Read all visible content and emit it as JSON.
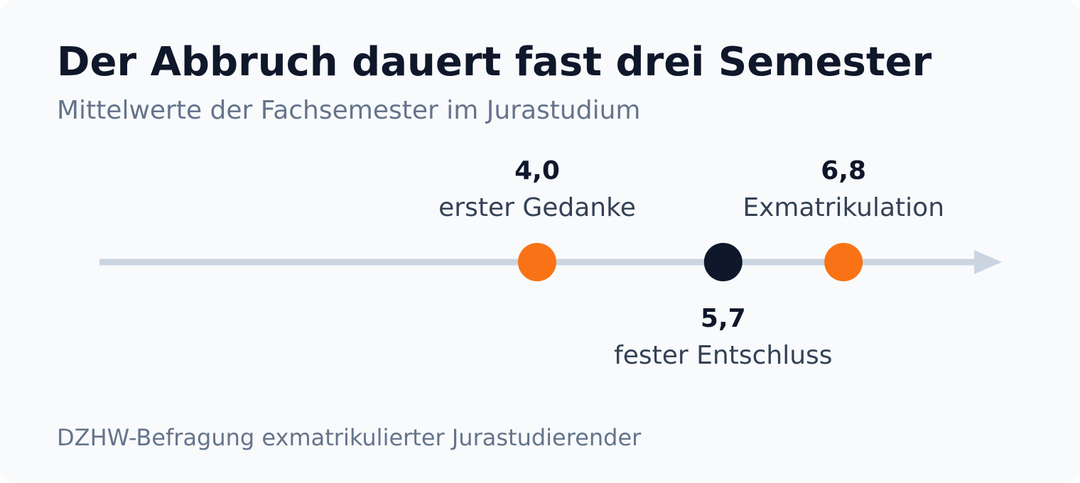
{
  "title": "Der Abbruch dauert fast drei Semester",
  "subtitle": "Mittelwerte der Fachsemester im Jurastudium",
  "source": "DZHW-Befragung exmatrikulierter Jurastudierender",
  "colors": {
    "background": "#f8fafc",
    "axis": "#cbd5e1",
    "accent": "#f97316",
    "highlight": "#0f172a",
    "title": "#0f172a",
    "muted": "#64748b",
    "label": "#334155"
  },
  "chart_data": {
    "type": "scatter",
    "orientation": "horizontal-timeline",
    "x_unit": "Fachsemester",
    "xlim": [
      0,
      8.5
    ],
    "grid": false,
    "points": [
      {
        "x": 4.0,
        "value_label": "4,0",
        "label": "erster Gedanke",
        "label_position": "above",
        "color": "#f97316"
      },
      {
        "x": 5.7,
        "value_label": "5,7",
        "label": "fester Entschluss",
        "label_position": "below",
        "color": "#0f172a"
      },
      {
        "x": 6.8,
        "value_label": "6,8",
        "label": "Exmatrikulation",
        "label_position": "above",
        "color": "#f97316"
      }
    ]
  }
}
